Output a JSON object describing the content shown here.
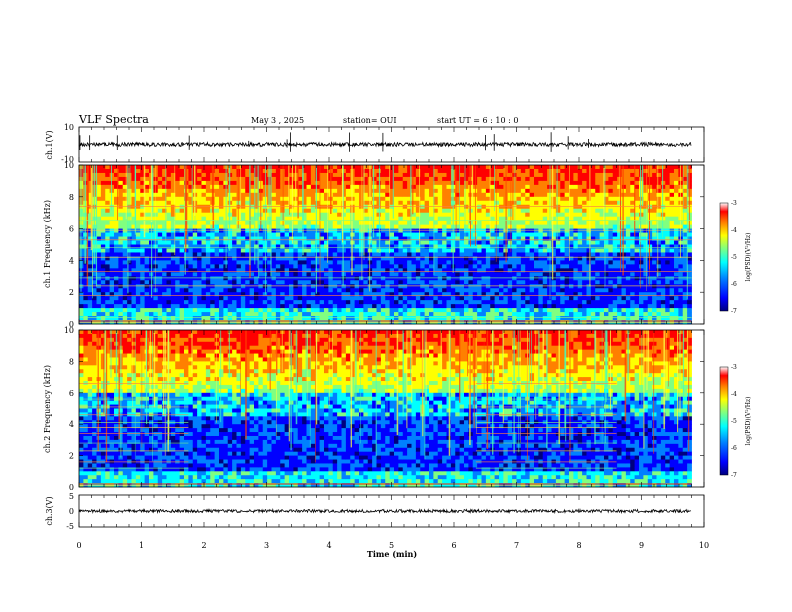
{
  "header": {
    "title": "VLF Spectra",
    "date": "May 3 , 2025",
    "station": "station= OUI",
    "start_ut": "start UT = 6 : 10 : 0"
  },
  "colors": {
    "colormap": [
      "#00007f",
      "#0000ff",
      "#0080ff",
      "#00ffff",
      "#80ff80",
      "#ffff00",
      "#ff8000",
      "#ff0000",
      "#ffffff"
    ],
    "trace": "#000000",
    "frame": "#000000"
  },
  "chart_data": [
    {
      "type": "line",
      "name": "ch1-waveform",
      "ylabel": "ch.1(V)",
      "ylim": [
        -10,
        10
      ],
      "yticks": [
        "10",
        "-10"
      ],
      "xlim": [
        0,
        10
      ],
      "baseline": 0,
      "noise_amplitude": 1
    },
    {
      "type": "heatmap",
      "name": "ch1-spectrogram",
      "ylabel": "ch.1 Frequency (kHz)",
      "ylim": [
        0,
        10
      ],
      "yticks": [
        "0",
        "2",
        "4",
        "6",
        "8",
        "10"
      ],
      "xlim": [
        0,
        10
      ],
      "data_end_min": 9.8,
      "colorbar": {
        "label": "log(PSD)(V²/Hz)",
        "range": [
          -7,
          -3
        ],
        "ticks": [
          "-3",
          "-4",
          "-5",
          "-6",
          "-7"
        ]
      },
      "interference_lines_khz": [
        0.1,
        0.4,
        1.8,
        2.4,
        2.9,
        3.3,
        4.2,
        4.8,
        5.3,
        5.9,
        6.5,
        7.4
      ]
    },
    {
      "type": "heatmap",
      "name": "ch2-spectrogram",
      "ylabel": "ch.2 Frequency (kHz)",
      "ylim": [
        0,
        10
      ],
      "yticks": [
        "0",
        "2",
        "4",
        "6",
        "8",
        "10"
      ],
      "xlim": [
        0,
        10
      ],
      "data_end_min": 9.8,
      "colorbar": {
        "label": "log(PSD)(V²/Hz)",
        "range": [
          -7,
          -3
        ],
        "ticks": [
          "-3",
          "-4",
          "-5",
          "-6",
          "-7"
        ]
      },
      "interference_lines_khz": [
        0.1,
        1.2,
        1.6,
        2.3,
        2.8,
        3.4,
        3.8,
        4.1,
        4.6,
        5.1,
        5.6,
        6.6
      ]
    },
    {
      "type": "line",
      "name": "ch3-waveform",
      "ylabel": "ch.3(V)",
      "ylim": [
        -5,
        5
      ],
      "yticks": [
        "5",
        "0",
        "-5"
      ],
      "xlim": [
        0,
        10
      ],
      "baseline": 0,
      "noise_amplitude": 0.1
    }
  ],
  "x_axis": {
    "label": "Time (min)",
    "ticks": [
      "0",
      "1",
      "2",
      "3",
      "4",
      "5",
      "6",
      "7",
      "8",
      "9",
      "10"
    ]
  }
}
